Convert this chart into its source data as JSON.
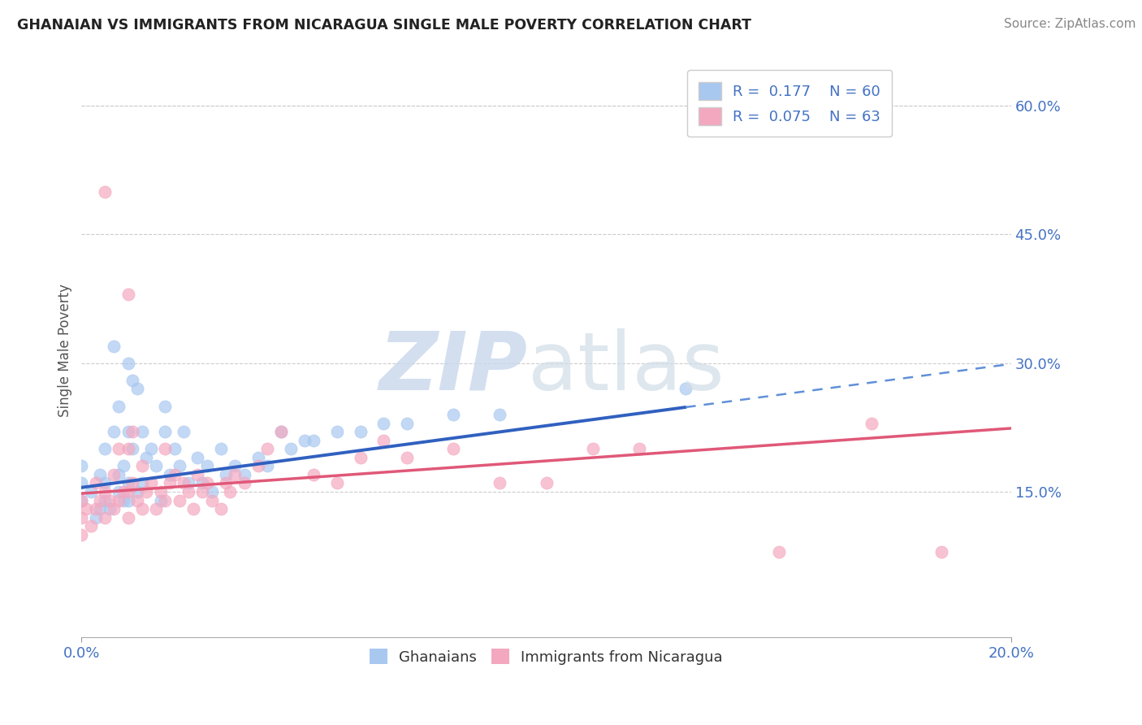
{
  "title": "GHANAIAN VS IMMIGRANTS FROM NICARAGUA SINGLE MALE POVERTY CORRELATION CHART",
  "source": "Source: ZipAtlas.com",
  "ylabel": "Single Male Poverty",
  "xlim": [
    0.0,
    0.2
  ],
  "ylim": [
    -0.02,
    0.65
  ],
  "ytick_vals_right": [
    0.15,
    0.3,
    0.45,
    0.6
  ],
  "ytick_labels_right": [
    "15.0%",
    "30.0%",
    "45.0%",
    "60.0%"
  ],
  "R_blue": 0.177,
  "N_blue": 60,
  "R_pink": 0.075,
  "N_pink": 63,
  "blue_color": "#A8C8F0",
  "pink_color": "#F4A8C0",
  "line_blue": "#3060C0",
  "line_blue_dash": "#6090D8",
  "line_pink": "#E05878",
  "legend_labels": [
    "Ghanaians",
    "Immigrants from Nicaragua"
  ],
  "blue_line_solid_end": 0.13,
  "blue_line_intercept": 0.155,
  "blue_line_slope": 0.72,
  "pink_line_intercept": 0.148,
  "pink_line_slope": 0.38,
  "ghanaian_x": [
    0.0,
    0.0,
    0.0,
    0.002,
    0.003,
    0.004,
    0.004,
    0.005,
    0.005,
    0.005,
    0.006,
    0.007,
    0.007,
    0.008,
    0.008,
    0.008,
    0.009,
    0.009,
    0.01,
    0.01,
    0.01,
    0.01,
    0.011,
    0.011,
    0.012,
    0.012,
    0.013,
    0.013,
    0.014,
    0.015,
    0.016,
    0.017,
    0.018,
    0.018,
    0.019,
    0.02,
    0.021,
    0.022,
    0.023,
    0.025,
    0.026,
    0.027,
    0.028,
    0.03,
    0.031,
    0.033,
    0.035,
    0.038,
    0.04,
    0.043,
    0.045,
    0.048,
    0.05,
    0.055,
    0.06,
    0.065,
    0.07,
    0.08,
    0.09,
    0.13
  ],
  "ghanaian_y": [
    0.14,
    0.16,
    0.18,
    0.15,
    0.12,
    0.13,
    0.17,
    0.14,
    0.16,
    0.2,
    0.13,
    0.22,
    0.32,
    0.15,
    0.17,
    0.25,
    0.14,
    0.18,
    0.14,
    0.16,
    0.22,
    0.3,
    0.2,
    0.28,
    0.15,
    0.27,
    0.16,
    0.22,
    0.19,
    0.2,
    0.18,
    0.14,
    0.22,
    0.25,
    0.17,
    0.2,
    0.18,
    0.22,
    0.16,
    0.19,
    0.16,
    0.18,
    0.15,
    0.2,
    0.17,
    0.18,
    0.17,
    0.19,
    0.18,
    0.22,
    0.2,
    0.21,
    0.21,
    0.22,
    0.22,
    0.23,
    0.23,
    0.24,
    0.24,
    0.27
  ],
  "nicaragua_x": [
    0.0,
    0.0,
    0.0,
    0.001,
    0.002,
    0.003,
    0.003,
    0.004,
    0.005,
    0.005,
    0.005,
    0.006,
    0.007,
    0.007,
    0.008,
    0.008,
    0.009,
    0.01,
    0.01,
    0.01,
    0.01,
    0.011,
    0.011,
    0.012,
    0.013,
    0.013,
    0.014,
    0.015,
    0.016,
    0.017,
    0.018,
    0.018,
    0.019,
    0.02,
    0.021,
    0.022,
    0.023,
    0.024,
    0.025,
    0.026,
    0.027,
    0.028,
    0.03,
    0.031,
    0.032,
    0.033,
    0.035,
    0.038,
    0.04,
    0.043,
    0.05,
    0.055,
    0.06,
    0.065,
    0.07,
    0.08,
    0.09,
    0.1,
    0.11,
    0.12,
    0.15,
    0.17,
    0.185
  ],
  "nicaragua_y": [
    0.1,
    0.12,
    0.14,
    0.13,
    0.11,
    0.13,
    0.16,
    0.14,
    0.12,
    0.15,
    0.5,
    0.14,
    0.13,
    0.17,
    0.14,
    0.2,
    0.15,
    0.12,
    0.15,
    0.2,
    0.38,
    0.16,
    0.22,
    0.14,
    0.13,
    0.18,
    0.15,
    0.16,
    0.13,
    0.15,
    0.14,
    0.2,
    0.16,
    0.17,
    0.14,
    0.16,
    0.15,
    0.13,
    0.17,
    0.15,
    0.16,
    0.14,
    0.13,
    0.16,
    0.15,
    0.17,
    0.16,
    0.18,
    0.2,
    0.22,
    0.17,
    0.16,
    0.19,
    0.21,
    0.19,
    0.2,
    0.16,
    0.16,
    0.2,
    0.2,
    0.08,
    0.23,
    0.08
  ]
}
